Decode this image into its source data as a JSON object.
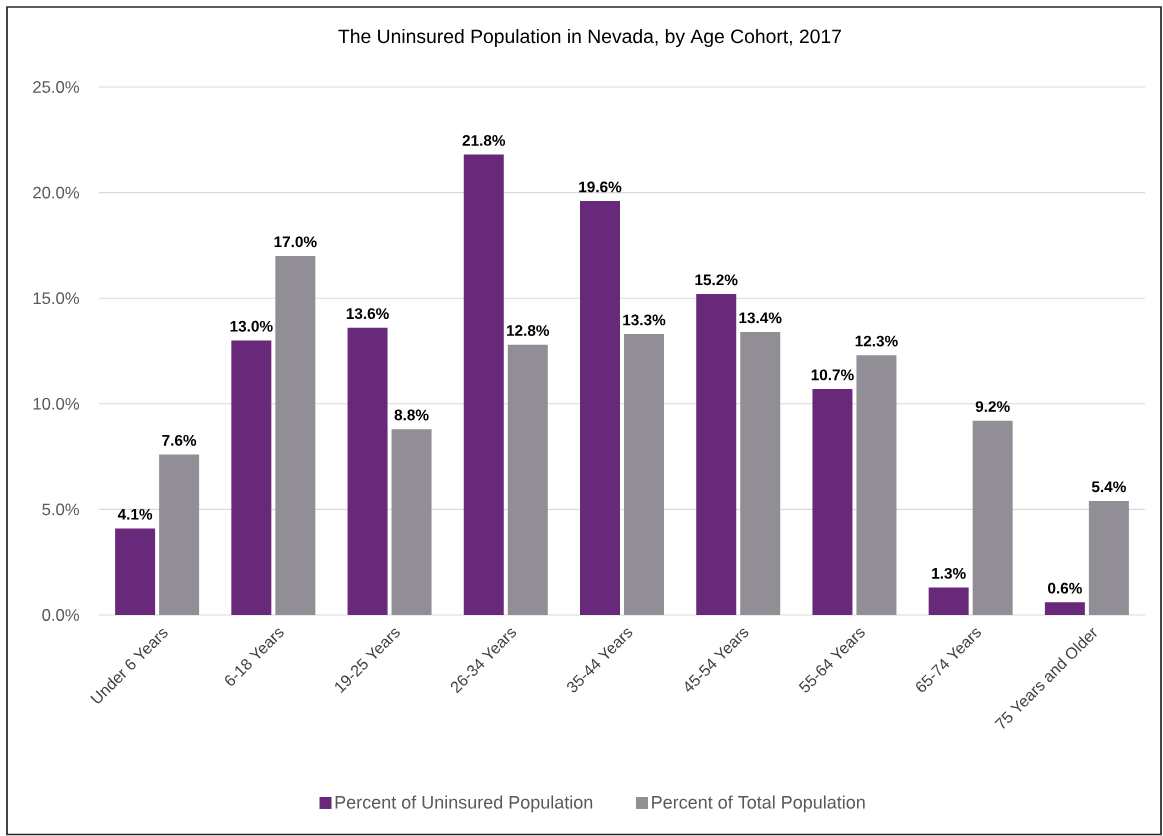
{
  "chart_data": {
    "type": "bar",
    "title": "The Uninsured Population in Nevada, by Age Cohort, 2017",
    "categories": [
      "Under 6 Years",
      "6-18 Years",
      "19-25 Years",
      "26-34 Years",
      "35-44 Years",
      "45-54 Years",
      "55-64 Years",
      "65-74 Years",
      "75 Years and Older"
    ],
    "series": [
      {
        "name": "Percent of Uninsured Population",
        "color": "#68297a",
        "values": [
          4.1,
          13.0,
          13.6,
          21.8,
          19.6,
          15.2,
          10.7,
          1.3,
          0.6
        ],
        "value_labels": [
          "4.1%",
          "13.0%",
          "13.6%",
          "21.8%",
          "19.6%",
          "15.2%",
          "10.7%",
          "1.3%",
          "0.6%"
        ]
      },
      {
        "name": "Percent of Total Population",
        "color": "#918e96",
        "values": [
          7.6,
          17.0,
          8.8,
          12.8,
          13.3,
          13.4,
          12.3,
          9.2,
          5.4
        ],
        "value_labels": [
          "7.6%",
          "17.0%",
          "8.8%",
          "12.8%",
          "13.3%",
          "13.4%",
          "12.3%",
          "9.2%",
          "5.4%"
        ]
      }
    ],
    "ylim": [
      0,
      25
    ],
    "yticks": [
      {
        "value": 0,
        "label": "0.0%"
      },
      {
        "value": 5,
        "label": "5.0%"
      },
      {
        "value": 10,
        "label": "10.0%"
      },
      {
        "value": 15,
        "label": "15.0%"
      },
      {
        "value": 20,
        "label": "20.0%"
      },
      {
        "value": 25,
        "label": "25.0%"
      }
    ],
    "grid": "y",
    "legend": "bottom"
  }
}
